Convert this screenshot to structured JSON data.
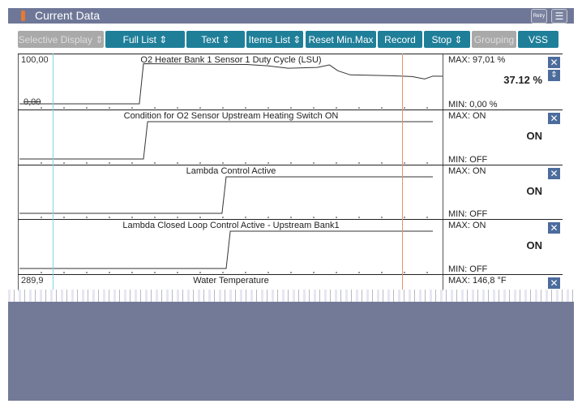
{
  "title": "Current Data",
  "title_buttons": [
    {
      "label": "Retry",
      "icon": "retry-icon"
    },
    {
      "label": "",
      "icon": "menu-icon"
    }
  ],
  "toolbar": [
    {
      "label": "Selective Display ⇕",
      "enabled": false
    },
    {
      "label": "Full List ⇕",
      "enabled": true
    },
    {
      "label": "Text ⇕",
      "enabled": true
    },
    {
      "label": "Items List ⇕",
      "enabled": true
    },
    {
      "label": "Reset Min.Max",
      "enabled": true
    },
    {
      "label": "Record",
      "enabled": true
    },
    {
      "label": "Stop ⇕",
      "enabled": true
    },
    {
      "label": "Grouping",
      "enabled": false
    },
    {
      "label": "VSS",
      "enabled": true
    }
  ],
  "rows": [
    {
      "label": "O2 Heater Bank 1 Sensor 1 Duty Cycle (LSU)",
      "ymax": "100,00",
      "ymin": "0,00",
      "max": "MAX: 97,01 %",
      "min": "MIN:  0,00 %",
      "current": "37.12 %",
      "trace": [
        [
          0,
          0
        ],
        [
          29,
          0
        ],
        [
          30,
          97
        ],
        [
          55,
          95
        ],
        [
          60,
          92
        ],
        [
          65,
          86
        ],
        [
          72,
          88
        ],
        [
          75,
          94
        ],
        [
          77,
          80
        ],
        [
          80,
          70
        ],
        [
          90,
          68
        ],
        [
          95,
          66
        ],
        [
          98,
          60
        ],
        [
          100,
          67
        ],
        [
          112,
          65
        ],
        [
          114,
          60
        ],
        [
          116,
          64
        ]
      ]
    },
    {
      "label": "Condition for O2 Sensor Upstream Heating Switch ON",
      "max": "MAX: ON",
      "min": "MIN: OFF",
      "current": "ON",
      "trace": [
        [
          0,
          0
        ],
        [
          30,
          0
        ],
        [
          31,
          1
        ],
        [
          100,
          1
        ]
      ]
    },
    {
      "label": "Lambda Control Active",
      "max": "MAX: ON",
      "min": "MIN: OFF",
      "current": "ON",
      "trace": [
        [
          0,
          0
        ],
        [
          49,
          0
        ],
        [
          50,
          1
        ],
        [
          100,
          1
        ]
      ]
    },
    {
      "label": "Lambda Closed Loop Control Active - Upstream Bank1",
      "max": "MAX: ON",
      "min": "MIN: OFF",
      "current": "ON",
      "trace": [
        [
          0,
          0
        ],
        [
          50,
          0
        ],
        [
          51,
          1
        ],
        [
          100,
          1
        ]
      ]
    },
    {
      "label": "Water Temperature",
      "ymax": "289,9",
      "max": "MAX: 146,8 °F"
    }
  ]
}
